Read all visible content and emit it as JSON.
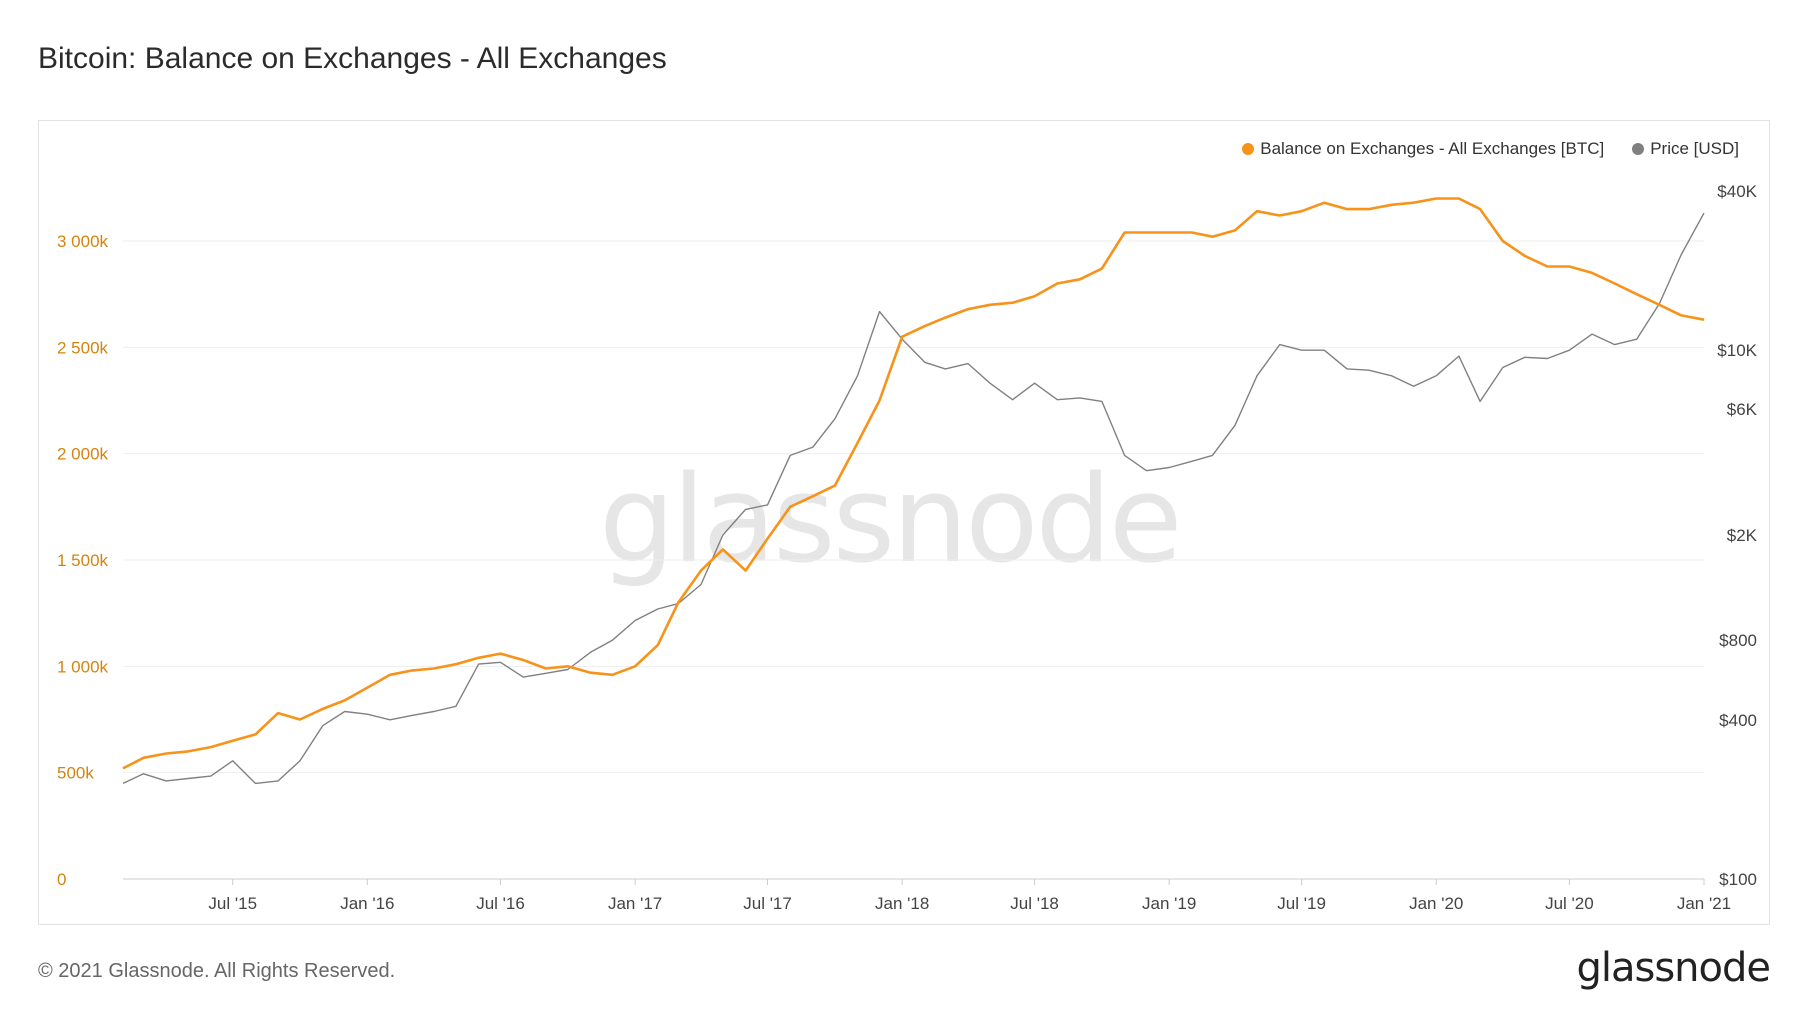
{
  "header": {
    "title": "Bitcoin: Balance on Exchanges - All Exchanges"
  },
  "footer": {
    "copyright": "© 2021 Glassnode. All Rights Reserved.",
    "logo": "glassnode"
  },
  "watermark": "glassnode",
  "colors": {
    "balance": "#f7931a",
    "price": "#808080",
    "grid": "#eeeeee",
    "left_axis_text": "#d4840f"
  },
  "chart_data": {
    "type": "line",
    "title": "Bitcoin: Balance on Exchanges - All Exchanges",
    "grid": true,
    "legend_position": "top-right",
    "x_ticks": [
      "Jul '15",
      "Jan '16",
      "Jul '16",
      "Jan '17",
      "Jul '17",
      "Jan '18",
      "Jul '18",
      "Jan '19",
      "Jul '19",
      "Jan '20",
      "Jul '20",
      "Jan '21"
    ],
    "x_range": [
      "2015-02-01",
      "2021-01-01"
    ],
    "left_axis": {
      "ticks": [
        "0",
        "500k",
        "1 000k",
        "1 500k",
        "2 000k",
        "2 500k",
        "3 000k"
      ],
      "ylim": [
        0,
        3000000
      ]
    },
    "right_axis": {
      "scale": "log",
      "ticks": [
        "$100",
        "$400",
        "$800",
        "$2K",
        "$6K",
        "$10K",
        "$40K"
      ],
      "ylim": [
        100,
        40000
      ]
    },
    "series": [
      {
        "name": "Balance on Exchanges - All Exchanges [BTC]",
        "axis": "left",
        "x": [
          "2015-02",
          "2015-03",
          "2015-04",
          "2015-05",
          "2015-06",
          "2015-07",
          "2015-08",
          "2015-09",
          "2015-10",
          "2015-11",
          "2015-12",
          "2016-01",
          "2016-02",
          "2016-03",
          "2016-04",
          "2016-05",
          "2016-06",
          "2016-07",
          "2016-08",
          "2016-09",
          "2016-10",
          "2016-11",
          "2016-12",
          "2017-01",
          "2017-02",
          "2017-03",
          "2017-04",
          "2017-05",
          "2017-06",
          "2017-07",
          "2017-08",
          "2017-09",
          "2017-10",
          "2017-11",
          "2017-12",
          "2018-01",
          "2018-02",
          "2018-03",
          "2018-04",
          "2018-05",
          "2018-06",
          "2018-07",
          "2018-08",
          "2018-09",
          "2018-10",
          "2018-11",
          "2018-12",
          "2019-01",
          "2019-02",
          "2019-03",
          "2019-04",
          "2019-05",
          "2019-06",
          "2019-07",
          "2019-08",
          "2019-09",
          "2019-10",
          "2019-11",
          "2019-12",
          "2020-01",
          "2020-02",
          "2020-03",
          "2020-04",
          "2020-05",
          "2020-06",
          "2020-07",
          "2020-08",
          "2020-09",
          "2020-10",
          "2020-11",
          "2020-12",
          "2021-01"
        ],
        "values": [
          520000,
          570000,
          590000,
          600000,
          620000,
          650000,
          680000,
          780000,
          750000,
          800000,
          840000,
          900000,
          960000,
          980000,
          990000,
          1010000,
          1040000,
          1060000,
          1030000,
          990000,
          1000000,
          970000,
          960000,
          1000000,
          1100000,
          1300000,
          1450000,
          1550000,
          1450000,
          1600000,
          1750000,
          1800000,
          1850000,
          2050000,
          2250000,
          2550000,
          2600000,
          2640000,
          2680000,
          2700000,
          2710000,
          2740000,
          2800000,
          2820000,
          2870000,
          3040000,
          3040000,
          3040000,
          3040000,
          3020000,
          3050000,
          3140000,
          3120000,
          3140000,
          3180000,
          3150000,
          3150000,
          3170000,
          3180000,
          3200000,
          3200000,
          3150000,
          3000000,
          2930000,
          2880000,
          2880000,
          2850000,
          2800000,
          2750000,
          2700000,
          2650000,
          2630000
        ]
      },
      {
        "name": "Price [USD]",
        "axis": "right",
        "x": [
          "2015-02",
          "2015-03",
          "2015-04",
          "2015-05",
          "2015-06",
          "2015-07",
          "2015-08",
          "2015-09",
          "2015-10",
          "2015-11",
          "2015-12",
          "2016-01",
          "2016-02",
          "2016-03",
          "2016-04",
          "2016-05",
          "2016-06",
          "2016-07",
          "2016-08",
          "2016-09",
          "2016-10",
          "2016-11",
          "2016-12",
          "2017-01",
          "2017-02",
          "2017-03",
          "2017-04",
          "2017-05",
          "2017-06",
          "2017-07",
          "2017-08",
          "2017-09",
          "2017-10",
          "2017-11",
          "2017-12",
          "2018-01",
          "2018-02",
          "2018-03",
          "2018-04",
          "2018-05",
          "2018-06",
          "2018-07",
          "2018-08",
          "2018-09",
          "2018-10",
          "2018-11",
          "2018-12",
          "2019-01",
          "2019-02",
          "2019-03",
          "2019-04",
          "2019-05",
          "2019-06",
          "2019-07",
          "2019-08",
          "2019-09",
          "2019-10",
          "2019-11",
          "2019-12",
          "2020-01",
          "2020-02",
          "2020-03",
          "2020-04",
          "2020-05",
          "2020-06",
          "2020-07",
          "2020-08",
          "2020-09",
          "2020-10",
          "2020-11",
          "2020-12",
          "2021-01"
        ],
        "values": [
          230,
          250,
          235,
          240,
          245,
          280,
          230,
          235,
          280,
          380,
          430,
          420,
          400,
          415,
          430,
          450,
          650,
          660,
          580,
          600,
          620,
          720,
          800,
          950,
          1050,
          1100,
          1300,
          2000,
          2500,
          2600,
          4000,
          4300,
          5500,
          8000,
          14000,
          11000,
          9000,
          8500,
          8900,
          7500,
          6500,
          7500,
          6500,
          6600,
          6400,
          4000,
          3500,
          3600,
          3800,
          4000,
          5200,
          8000,
          10500,
          10000,
          10000,
          8500,
          8400,
          8000,
          7300,
          8000,
          9500,
          6400,
          8600,
          9400,
          9300,
          10000,
          11500,
          10500,
          11000,
          15000,
          23000,
          33000
        ]
      }
    ]
  }
}
